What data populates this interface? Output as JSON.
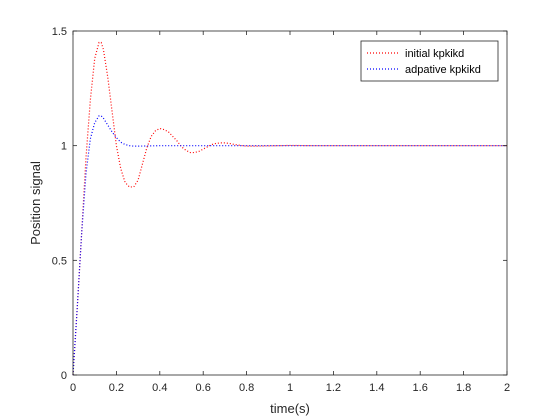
{
  "chart_data": {
    "type": "line",
    "title": "",
    "xlabel": "time(s)",
    "ylabel": "Position signal",
    "xlim": [
      0,
      2
    ],
    "ylim": [
      0,
      1.5
    ],
    "xticks": [
      0,
      0.2,
      0.4,
      0.6,
      0.8,
      1,
      1.2,
      1.4,
      1.6,
      1.8,
      2
    ],
    "xtick_labels": [
      "0",
      "0.2",
      "0.4",
      "0.6",
      "0.8",
      "1",
      "1.2",
      "1.4",
      "1.6",
      "1.8",
      "2"
    ],
    "yticks": [
      0,
      0.5,
      1,
      1.5
    ],
    "ytick_labels": [
      "0",
      "0.5",
      "1",
      "1.5"
    ],
    "grid": false,
    "legend_position": "top-right",
    "series": [
      {
        "name": "initial kpkikd",
        "color": "#ff0000",
        "style": "dotted",
        "x": [
          0,
          0.02,
          0.04,
          0.06,
          0.08,
          0.1,
          0.12,
          0.13,
          0.14,
          0.16,
          0.18,
          0.2,
          0.22,
          0.24,
          0.26,
          0.28,
          0.3,
          0.32,
          0.34,
          0.36,
          0.38,
          0.4,
          0.42,
          0.44,
          0.46,
          0.48,
          0.5,
          0.52,
          0.54,
          0.56,
          0.58,
          0.6,
          0.62,
          0.64,
          0.66,
          0.68,
          0.7,
          0.72,
          0.74,
          0.76,
          0.78,
          0.8,
          0.85,
          0.9,
          0.95,
          1.0,
          1.1,
          1.2,
          1.4,
          1.6,
          1.8,
          2.0
        ],
        "y": [
          0,
          0.3,
          0.62,
          0.95,
          1.2,
          1.38,
          1.45,
          1.45,
          1.42,
          1.3,
          1.15,
          1.0,
          0.9,
          0.84,
          0.82,
          0.82,
          0.85,
          0.92,
          0.99,
          1.04,
          1.065,
          1.075,
          1.07,
          1.06,
          1.04,
          1.02,
          0.995,
          0.98,
          0.97,
          0.97,
          0.975,
          0.985,
          0.995,
          1.005,
          1.01,
          1.012,
          1.012,
          1.01,
          1.006,
          1.003,
          1.0,
          0.998,
          0.998,
          0.999,
          1.0,
          1.001,
          1.0,
          1.0,
          1.0,
          1.0,
          1.0,
          1.0
        ]
      },
      {
        "name": "adpative kpkikd",
        "color": "#0000ff",
        "style": "dotted",
        "x": [
          0,
          0.02,
          0.04,
          0.06,
          0.08,
          0.1,
          0.12,
          0.13,
          0.14,
          0.16,
          0.18,
          0.2,
          0.22,
          0.24,
          0.26,
          0.28,
          0.3,
          0.35,
          0.4,
          0.45,
          0.5,
          0.6,
          0.7,
          0.8,
          1.0,
          1.2,
          1.4,
          1.6,
          1.8,
          2.0
        ],
        "y": [
          0,
          0.3,
          0.62,
          0.88,
          1.03,
          1.1,
          1.13,
          1.13,
          1.12,
          1.09,
          1.06,
          1.035,
          1.015,
          1.005,
          1.0,
          0.998,
          0.998,
          0.999,
          1.0,
          1.0,
          1.0,
          1.0,
          1.0,
          1.0,
          1.0,
          1.0,
          1.0,
          1.0,
          1.0,
          1.0
        ]
      }
    ]
  }
}
